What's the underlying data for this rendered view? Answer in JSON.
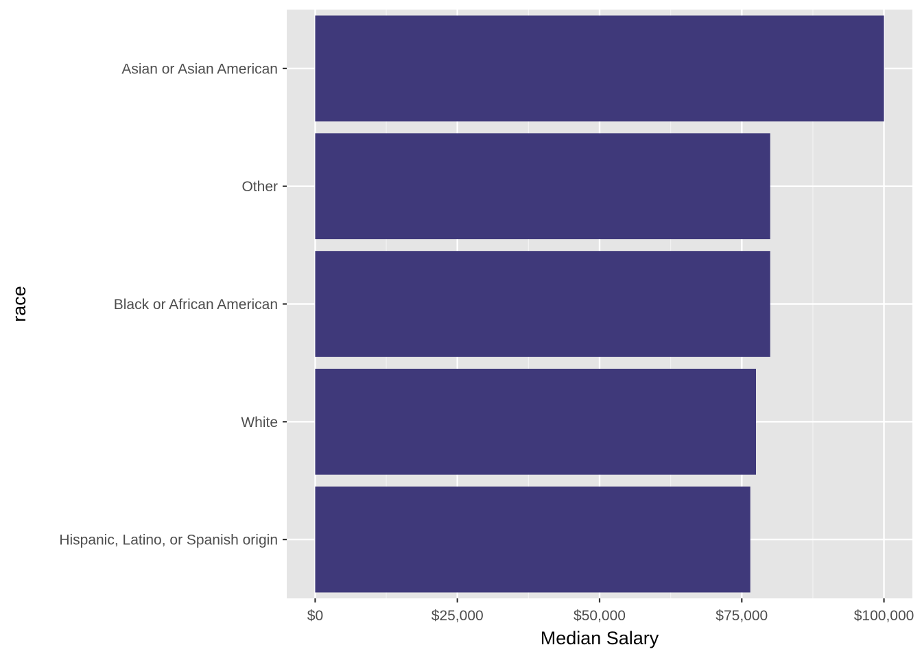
{
  "chart_data": {
    "type": "bar",
    "orientation": "horizontal",
    "xlabel": "Median Salary",
    "ylabel": "race",
    "categories": [
      "Asian or Asian American",
      "Other",
      "Black or African American",
      "White",
      "Hispanic, Latino, or Spanish origin"
    ],
    "values": [
      100000,
      80000,
      80000,
      77500,
      76500
    ],
    "xlim": [
      -5000,
      105000
    ],
    "x_ticks": [
      0,
      25000,
      50000,
      75000,
      100000
    ],
    "x_tick_labels": [
      "$0",
      "$25,000",
      "$50,000",
      "$75,000",
      "$100,000"
    ],
    "grid": true,
    "colors": {
      "bar": "#3b3577",
      "panel_background": "#e5e5e5",
      "grid_major": "#ffffff",
      "grid_minor": "#f2f2f2",
      "tick_text": "#4d4d4d",
      "axis_title": "#000000"
    }
  }
}
